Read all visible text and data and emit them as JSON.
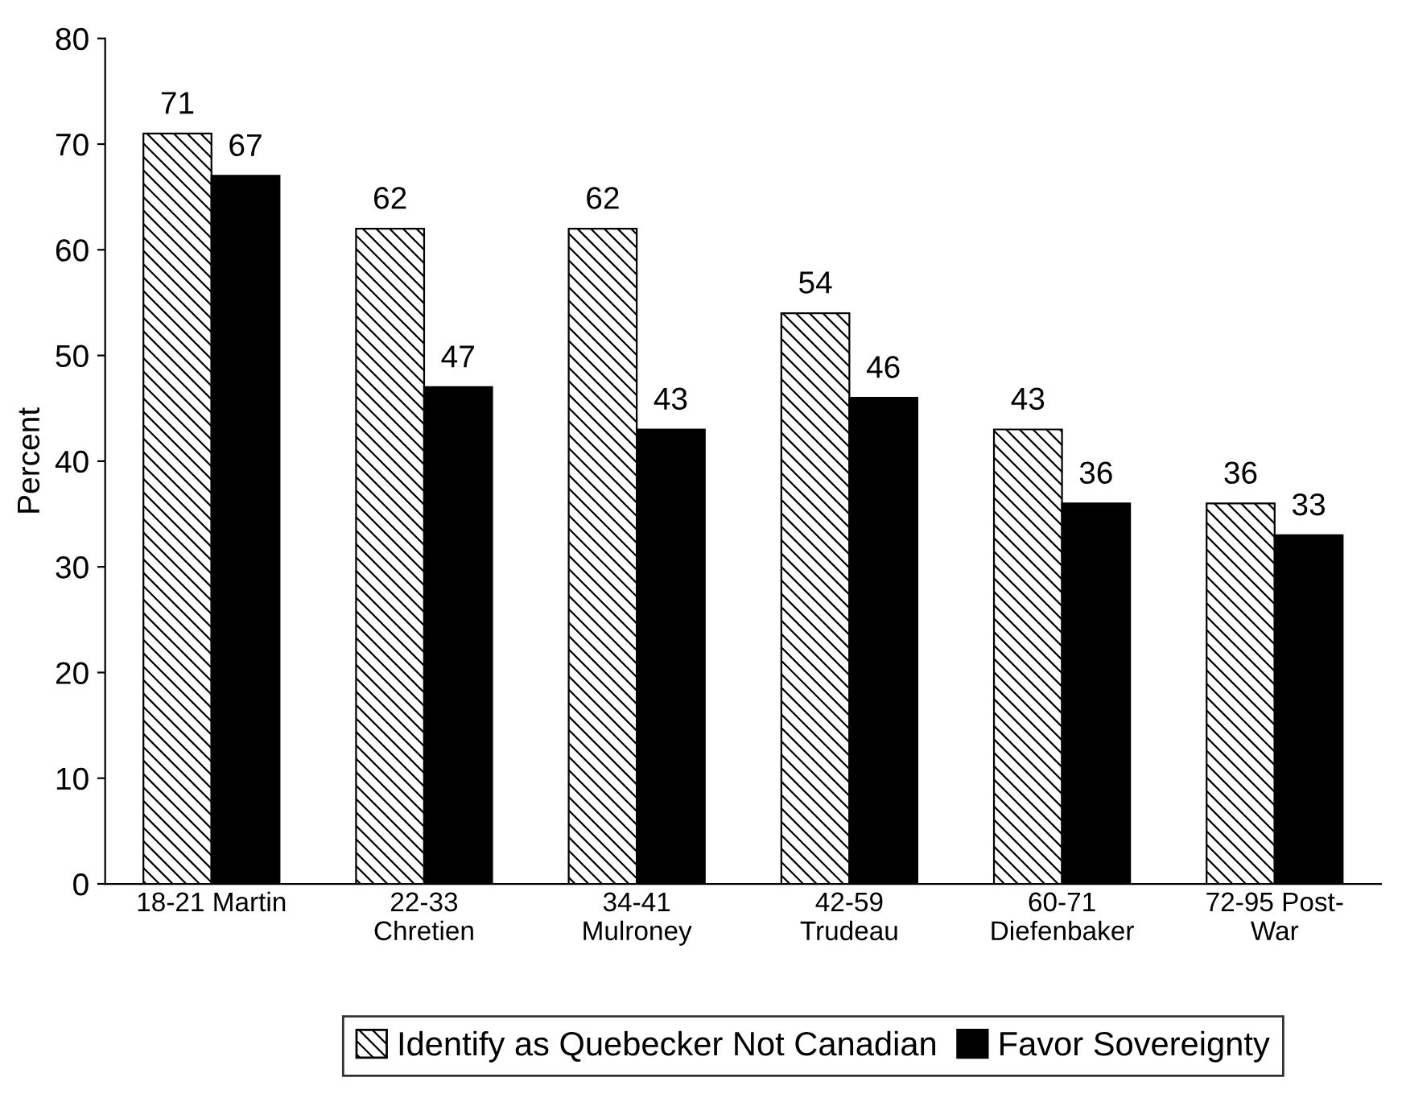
{
  "chart_data": {
    "type": "bar",
    "ylabel": "Percent",
    "categories": [
      "18-21 Martin",
      "22-33\nChretien",
      "34-41\nMulroney",
      "42-59\nTrudeau",
      "60-71\nDiefenbaker",
      "72-95 Post-\nWar"
    ],
    "series": [
      {
        "name": "Identify as Quebecker Not Canadian",
        "color": "#000000",
        "values": [
          71,
          62,
          62,
          54,
          43,
          36
        ]
      },
      {
        "name": "Favor Sovereignty",
        "color": "#000000",
        "values": [
          67,
          47,
          43,
          46,
          36,
          33
        ]
      }
    ],
    "ylim": [
      0,
      80
    ],
    "yticks": [
      0,
      10,
      20,
      30,
      40,
      50,
      60,
      70,
      80
    ],
    "data_labels": true,
    "grid": false,
    "legend": "bottom"
  }
}
